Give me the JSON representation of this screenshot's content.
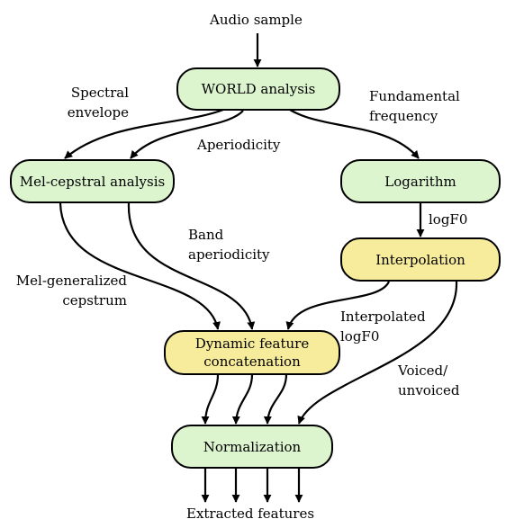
{
  "input_label": "Audio sample",
  "output_label": "Extracted features",
  "nodes": {
    "world": "WORLD analysis",
    "melcep": "Mel-cepstral analysis",
    "logarithm": "Logarithm",
    "interpolation": "Interpolation",
    "dynamic_line1": "Dynamic feature",
    "dynamic_line2": "concatenation",
    "normalization": "Normalization"
  },
  "edges": {
    "spectral_line1": "Spectral",
    "spectral_line2": "envelope",
    "aperiodicity": "Aperiodicity",
    "fundamental_line1": "Fundamental",
    "fundamental_line2": "frequency",
    "logf0": "logF0",
    "band_line1": "Band",
    "band_line2": "aperiodicity",
    "melgen_line1": "Mel-generalized",
    "melgen_line2": "cepstrum",
    "interp_line1": "Interpolated",
    "interp_line2": "logF0",
    "voiced_line1": "Voiced/",
    "voiced_line2": "unvoiced"
  },
  "colors": {
    "analysis_fill": "#dcf5cf",
    "processing_fill": "#f6ec9c",
    "stroke": "#000000"
  }
}
